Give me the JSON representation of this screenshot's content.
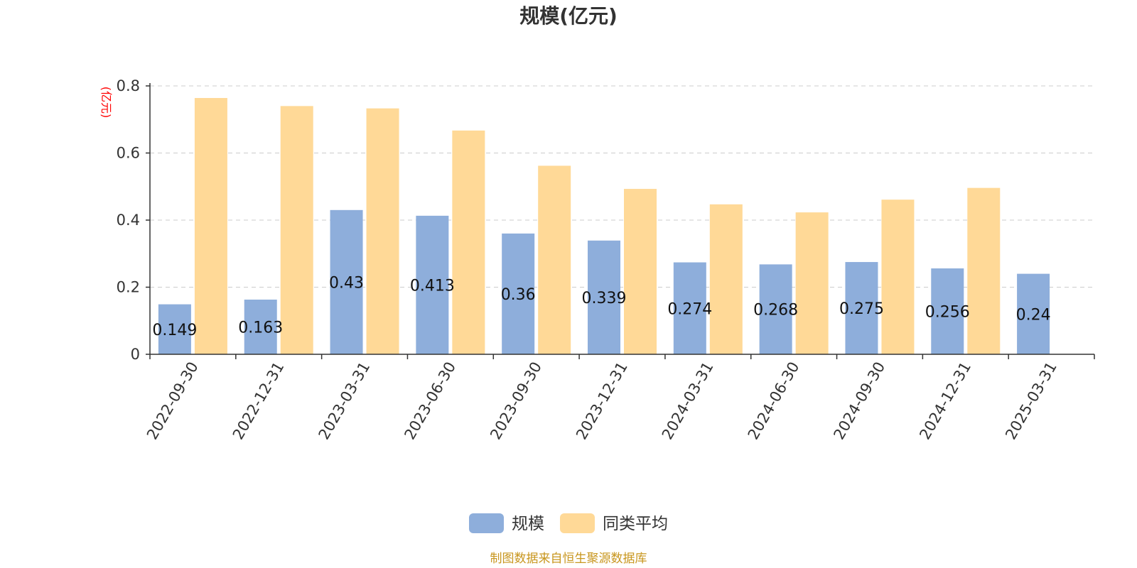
{
  "colors": {
    "scale": "#8eaedb",
    "peer_avg": "#ffd997",
    "grid": "#cccccc",
    "axis": "#333333",
    "unit": "#ff0000",
    "source": "#c8961e"
  },
  "chart_data": {
    "type": "bar",
    "title": "规模(亿元)",
    "ylabel": "(亿元)",
    "ylim": [
      0,
      0.8
    ],
    "yticks": [
      "0",
      "0.2",
      "0.4",
      "0.6",
      "0.8"
    ],
    "grid": true,
    "legend_position": "bottom",
    "categories": [
      "2022-09-30",
      "2022-12-31",
      "2023-03-31",
      "2023-06-30",
      "2023-09-30",
      "2023-12-31",
      "2024-03-31",
      "2024-06-30",
      "2024-09-30",
      "2024-12-31",
      "2025-03-31"
    ],
    "series": [
      {
        "name": "规模",
        "values": [
          0.149,
          0.163,
          0.43,
          0.413,
          0.36,
          0.339,
          0.274,
          0.268,
          0.275,
          0.256,
          0.24
        ],
        "labels": [
          "0.149",
          "0.163",
          "0.43",
          "0.413",
          "0.36",
          "0.339",
          "0.274",
          "0.268",
          "0.275",
          "0.256",
          "0.24"
        ]
      },
      {
        "name": "同类平均",
        "values": [
          0.764,
          0.74,
          0.733,
          0.667,
          0.562,
          0.493,
          0.447,
          0.423,
          0.461,
          0.496,
          null
        ]
      }
    ]
  },
  "footer": {
    "source": "制图数据来自恒生聚源数据库"
  }
}
